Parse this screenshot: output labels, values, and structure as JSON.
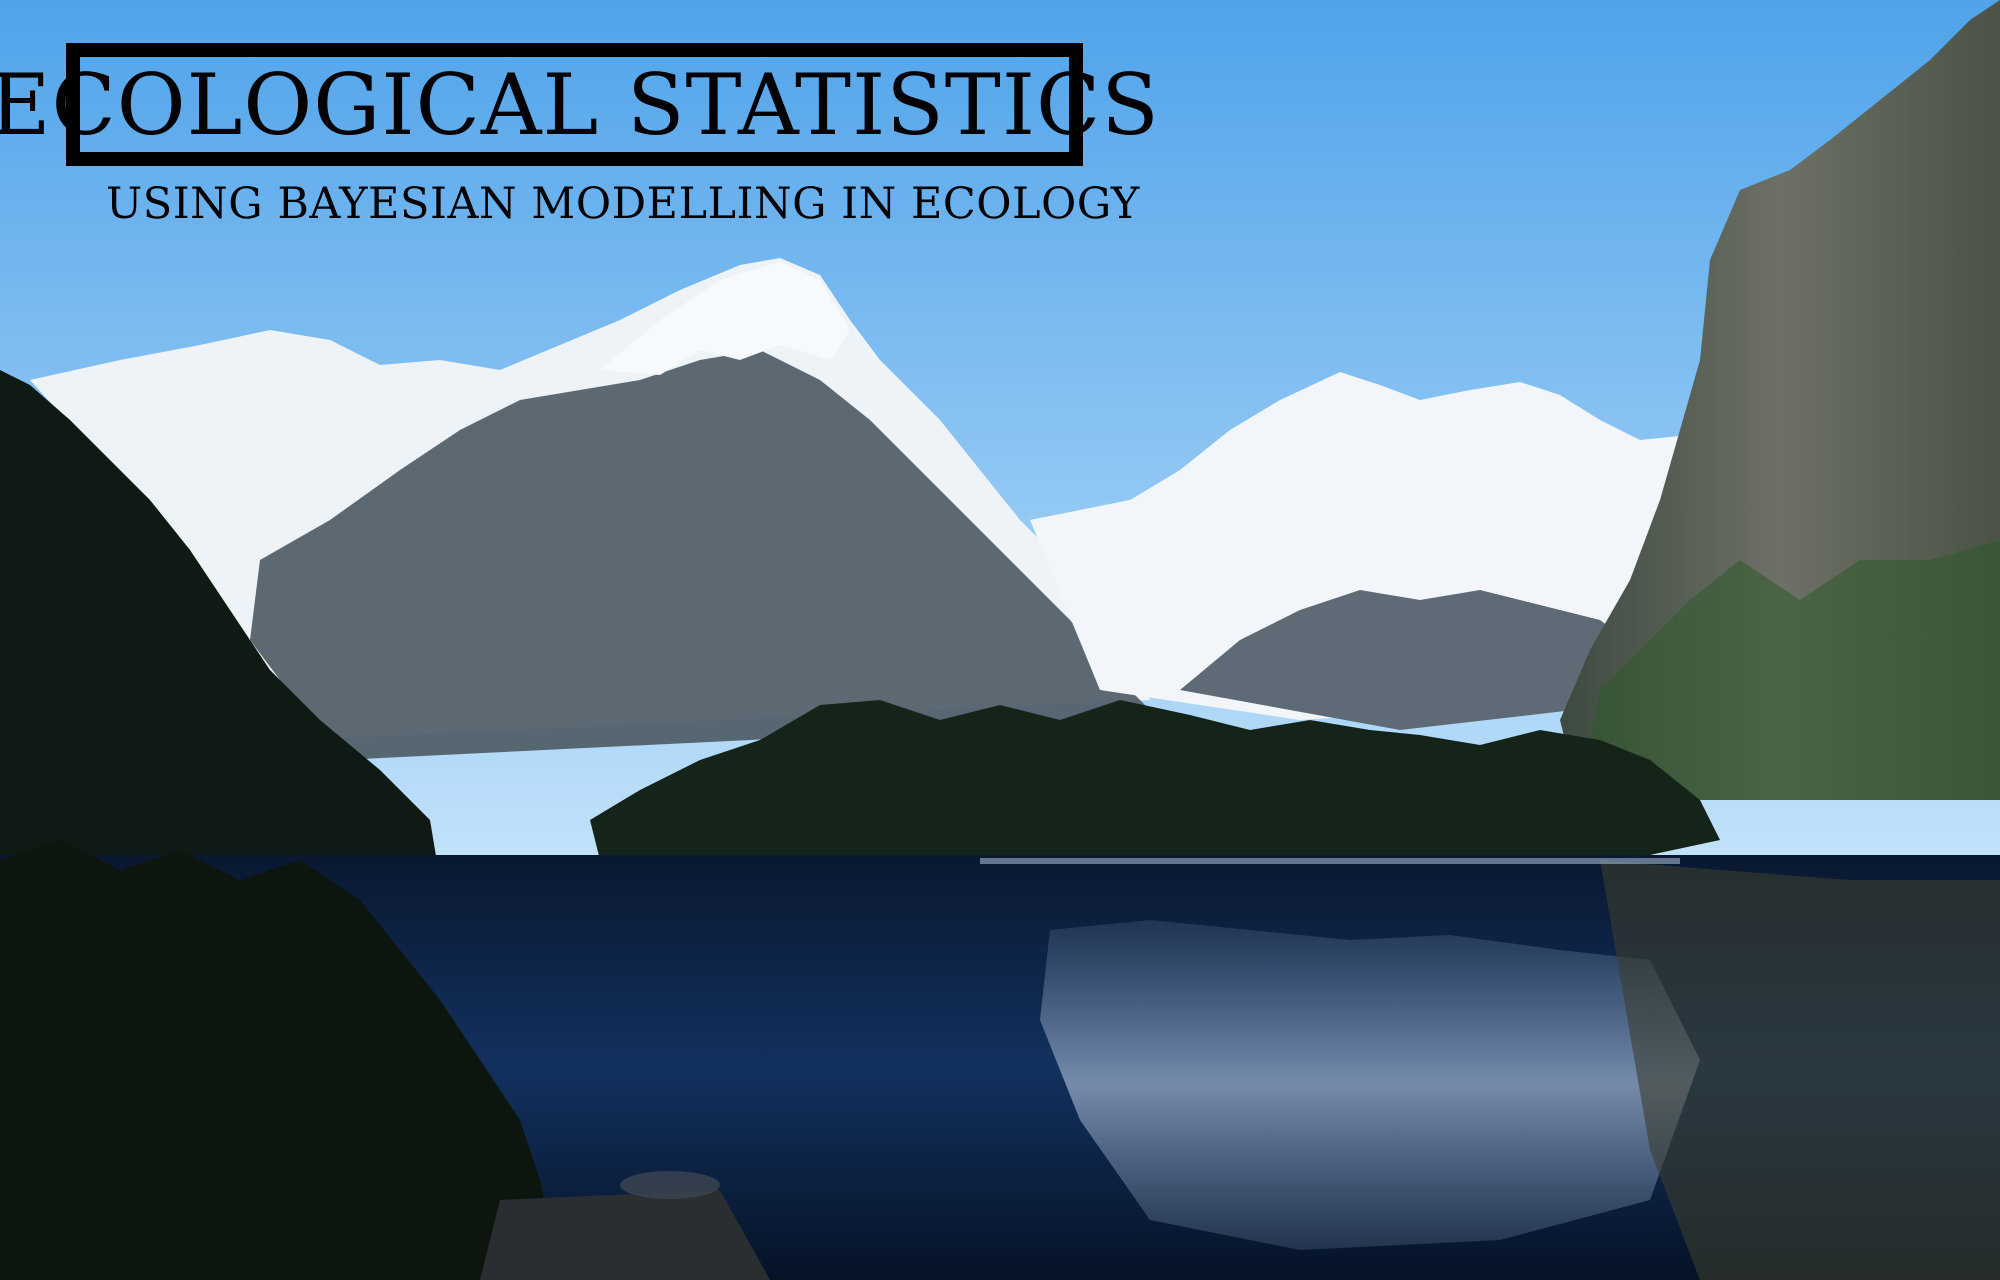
{
  "cover": {
    "title": "ECOLOGICAL STATISTICS",
    "subtitle": "USING BAYESIAN MODELLING IN ECOLOGY"
  },
  "colors": {
    "sky_top": "#5aa8ea",
    "sky_bottom": "#bfe0fb",
    "snow": "#f4f7fa",
    "rock": "#5a6470",
    "forest": "#13221a",
    "water": "#0c1f3c",
    "text": "#000000"
  }
}
